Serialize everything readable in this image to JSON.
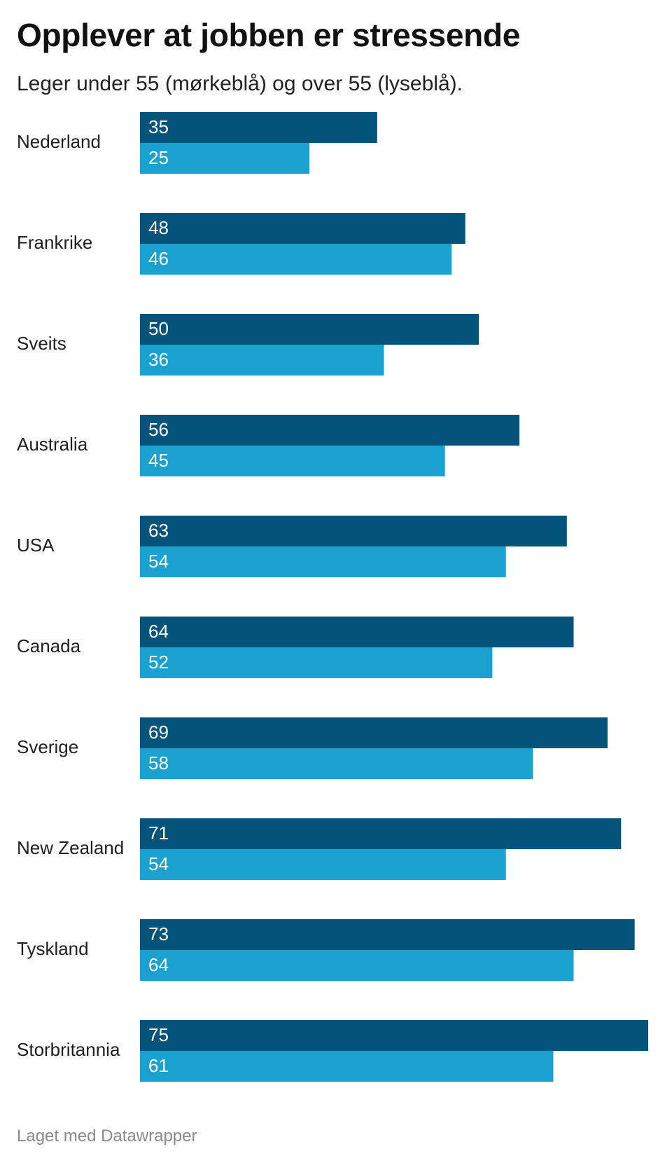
{
  "title": "Opplever at jobben er stressende",
  "subtitle": "Leger under 55 (mørkeblå) og over 55 (lyseblå).",
  "footer": "Laget med Datawrapper",
  "colors": {
    "under55": "#03537a",
    "over55": "#1aa1d0"
  },
  "chart_data": {
    "type": "bar",
    "orientation": "horizontal",
    "title": "Opplever at jobben er stressende",
    "subtitle": "Leger under 55 (mørkeblå) og over 55 (lyseblå).",
    "xlim": [
      0,
      75
    ],
    "grid": false,
    "categories": [
      "Nederland",
      "Frankrike",
      "Sveits",
      "Australia",
      "USA",
      "Canada",
      "Sverige",
      "New Zealand",
      "Tyskland",
      "Storbritannia"
    ],
    "series": [
      {
        "key": "under55",
        "values": [
          35,
          48,
          50,
          56,
          63,
          64,
          69,
          71,
          73,
          75
        ]
      },
      {
        "key": "over55",
        "values": [
          25,
          46,
          36,
          45,
          54,
          52,
          58,
          54,
          64,
          61
        ]
      }
    ]
  }
}
